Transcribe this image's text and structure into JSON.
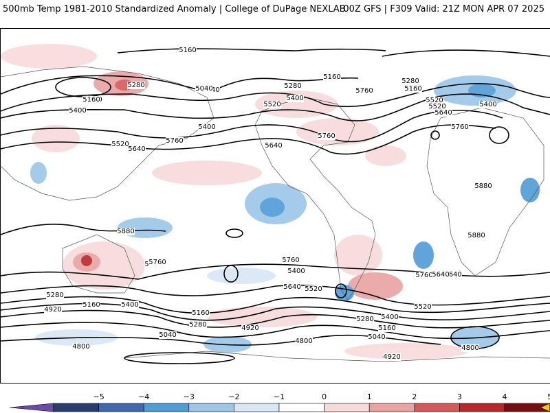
{
  "header": {
    "title": "500mb Temp 1981-2010 Standardized Anomaly | College of DuPage NEXLAB",
    "run_info": "00Z GFS | F309 Valid: 21Z MON APR 07 2025"
  },
  "contour_labels": [
    "5160",
    "5280",
    "5040",
    "5280",
    "5160",
    "5520",
    "5400",
    "5160",
    "5400",
    "5520",
    "5640",
    "5760",
    "5760",
    "5280",
    "5640",
    "5760",
    "5400",
    "5520",
    "5640",
    "5280",
    "5160",
    "5040",
    "5160",
    "5400",
    "5520",
    "5760",
    "5880",
    "5880",
    "5880",
    "5760",
    "5640",
    "5760",
    "5640",
    "5520",
    "5400",
    "5280",
    "5160",
    "4920",
    "5400",
    "5280",
    "5160",
    "5040",
    "4920",
    "4800",
    "5640",
    "5400",
    "5280",
    "5160",
    "5040",
    "4920",
    "5520",
    "4800",
    "4800",
    "5760",
    "5640"
  ],
  "colorbar": {
    "labels": [
      "−5",
      "−4",
      "−3",
      "−2",
      "−1",
      "0",
      "1",
      "2",
      "3",
      "4",
      "5"
    ],
    "colors": [
      "#6a4ca8",
      "#283c6e",
      "#3f68ad",
      "#4f9bd6",
      "#9cc6e8",
      "#d8e7f6",
      "#ffffff",
      "#f7dada",
      "#eaa3a3",
      "#d45a5a",
      "#b82828",
      "#7a0d0d",
      "#f0c419"
    ]
  }
}
